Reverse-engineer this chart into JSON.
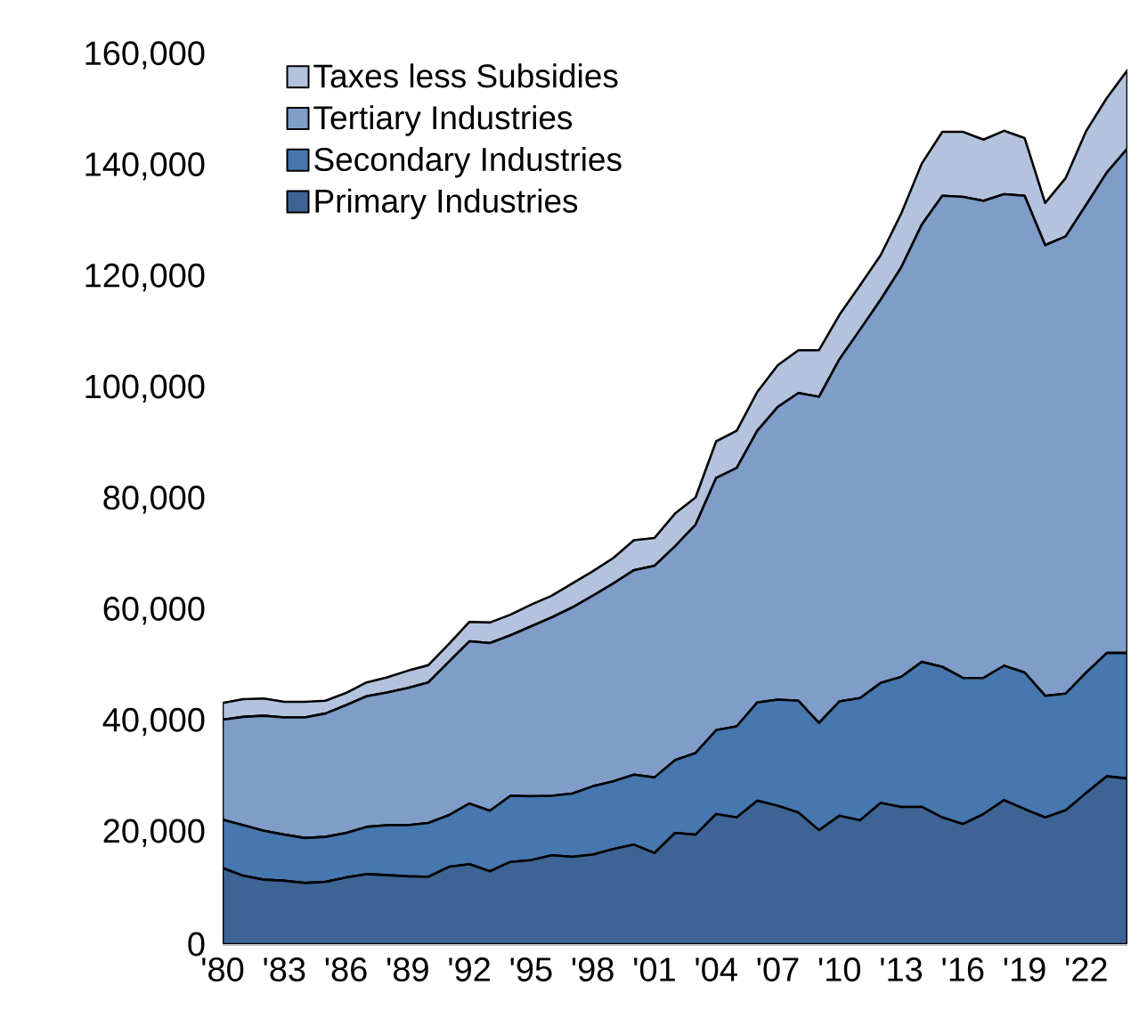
{
  "chart_data": {
    "type": "area",
    "stacked": true,
    "legend": "top left",
    "x": [
      1980,
      1981,
      1982,
      1983,
      1984,
      1985,
      1986,
      1987,
      1988,
      1989,
      1990,
      1991,
      1992,
      1993,
      1994,
      1995,
      1996,
      1997,
      1998,
      1999,
      2000,
      2001,
      2002,
      2003,
      2004,
      2005,
      2006,
      2007,
      2008,
      2009,
      2010,
      2011,
      2012,
      2013,
      2014,
      2015,
      2016,
      2017,
      2018,
      2019,
      2020,
      2021,
      2022,
      2023,
      2024
    ],
    "xlim": [
      1980,
      2024
    ],
    "xticks": [
      {
        "value": 1980,
        "label": "'80"
      },
      {
        "value": 1983,
        "label": "'83"
      },
      {
        "value": 1986,
        "label": "'86"
      },
      {
        "value": 1989,
        "label": "'89"
      },
      {
        "value": 1992,
        "label": "'92"
      },
      {
        "value": 1995,
        "label": "'95"
      },
      {
        "value": 1998,
        "label": "'98"
      },
      {
        "value": 2001,
        "label": "'01"
      },
      {
        "value": 2004,
        "label": "'04"
      },
      {
        "value": 2007,
        "label": "'07"
      },
      {
        "value": 2010,
        "label": "'10"
      },
      {
        "value": 2013,
        "label": "'13"
      },
      {
        "value": 2016,
        "label": "'16"
      },
      {
        "value": 2019,
        "label": "'19"
      },
      {
        "value": 2022,
        "label": "'22"
      }
    ],
    "ylim": [
      0,
      160000
    ],
    "yticks": [
      0,
      {
        "value": 20000,
        "label": "20,000"
      },
      {
        "value": 40000,
        "label": "40,000"
      },
      {
        "value": 60000,
        "label": "60,000"
      },
      {
        "value": 80000,
        "label": "80,000"
      },
      {
        "value": 100000,
        "label": "100,000"
      },
      {
        "value": 120000,
        "label": "120,000"
      },
      {
        "value": 140000,
        "label": "140,000"
      },
      {
        "value": 160000,
        "label": "160,000"
      }
    ],
    "series": [
      {
        "name": "Primary Industries",
        "color": "#3d6494",
        "values": [
          13700,
          12300,
          11600,
          11400,
          11000,
          11200,
          12000,
          12600,
          12400,
          12200,
          12100,
          13900,
          14400,
          13100,
          14800,
          15100,
          16000,
          15700,
          16100,
          17100,
          17900,
          16400,
          20000,
          19700,
          23400,
          22800,
          25800,
          24900,
          23700,
          20500,
          23100,
          22300,
          25400,
          24700,
          24700,
          22800,
          21600,
          23400,
          25900,
          24300,
          22800,
          24100,
          27200,
          30200,
          29800
        ]
      },
      {
        "name": "Secondary Industries",
        "color": "#4677ae",
        "values": [
          8700,
          9100,
          8800,
          8300,
          8100,
          8100,
          8000,
          8500,
          9000,
          9200,
          9700,
          9300,
          10900,
          10900,
          11900,
          11500,
          10700,
          11400,
          12300,
          12200,
          12600,
          13600,
          13100,
          14700,
          15100,
          16400,
          17700,
          19100,
          20100,
          19300,
          20600,
          22000,
          21600,
          23400,
          26100,
          27100,
          26300,
          24500,
          24200,
          24600,
          21900,
          21000,
          21700,
          22200,
          22600
        ]
      },
      {
        "name": "Tertiary Industries",
        "color": "#7f9dc8",
        "values": [
          18000,
          19500,
          20700,
          21100,
          21700,
          22200,
          23000,
          23500,
          23900,
          24700,
          25300,
          27600,
          29200,
          30200,
          28900,
          30600,
          32100,
          33500,
          34300,
          35600,
          36800,
          38100,
          38500,
          41100,
          45400,
          46500,
          48900,
          52700,
          55400,
          58700,
          61600,
          66300,
          69000,
          73700,
          78700,
          84800,
          86600,
          85900,
          84900,
          85800,
          81100,
          82300,
          84200,
          86500,
          90800
        ]
      },
      {
        "name": "Taxes less Subsidies",
        "color": "#b3c3de",
        "values": [
          3000,
          3200,
          3100,
          2800,
          2800,
          2300,
          2200,
          2500,
          2700,
          3100,
          3100,
          3200,
          3500,
          3700,
          3700,
          3900,
          3900,
          4300,
          4400,
          4600,
          5400,
          5000,
          5900,
          4900,
          6600,
          6700,
          7000,
          7500,
          7700,
          8400,
          8000,
          8000,
          8000,
          9700,
          11000,
          11500,
          11700,
          11000,
          11400,
          10400,
          7600,
          10500,
          13300,
          13400,
          14100
        ]
      }
    ]
  }
}
